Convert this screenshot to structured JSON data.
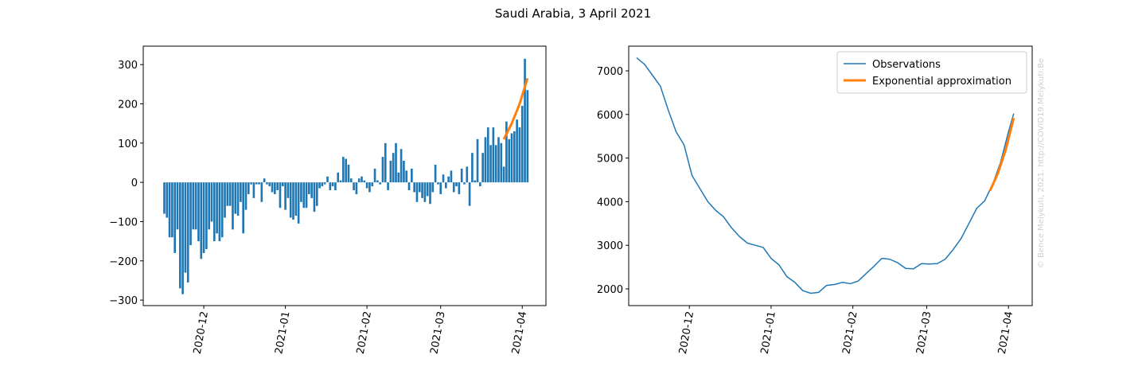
{
  "title": "Saudi Arabia, 3 April 2021",
  "watermark": "© Bence Melykuti, 2021. http://COVID19.Melykuti.Be",
  "chart_data": [
    {
      "type": "bar",
      "xlim": [
        "2020-11-08",
        "2021-04-10"
      ],
      "xticks": [
        "2020-12",
        "2021-01",
        "2021-02",
        "2021-03",
        "2021-04"
      ],
      "ylim": [
        -314,
        347
      ],
      "yticks": [
        {
          "value": -300,
          "label": "−300"
        },
        {
          "value": -200,
          "label": "−200"
        },
        {
          "value": -100,
          "label": "−100"
        },
        0,
        100,
        200,
        300
      ],
      "series": [
        {
          "type": "bar",
          "color": "#1f77b4",
          "start": "2020-11-16",
          "values": [
            -80,
            -90,
            -140,
            -140,
            -180,
            -120,
            -270,
            -285,
            -230,
            -255,
            -160,
            -120,
            -120,
            -150,
            -195,
            -180,
            -170,
            -120,
            -100,
            -150,
            -130,
            -150,
            -140,
            -90,
            -60,
            -60,
            -120,
            -80,
            -85,
            -50,
            -130,
            -70,
            -30,
            -5,
            -40,
            -5,
            -5,
            -50,
            10,
            -5,
            -10,
            -25,
            -30,
            -20,
            -65,
            -10,
            -70,
            -40,
            -90,
            -95,
            -85,
            -105,
            -50,
            -65,
            -65,
            -30,
            -40,
            -75,
            -60,
            -15,
            -10,
            -5,
            15,
            -20,
            -10,
            -20,
            25,
            5,
            65,
            60,
            45,
            10,
            -20,
            -30,
            10,
            15,
            5,
            -15,
            -25,
            -10,
            35,
            5,
            -5,
            65,
            100,
            -20,
            55,
            75,
            100,
            25,
            85,
            55,
            30,
            -20,
            35,
            -25,
            -50,
            -25,
            -40,
            -50,
            -35,
            -55,
            -25,
            45,
            -5,
            -30,
            20,
            -15,
            15,
            30,
            -25,
            -10,
            -30,
            35,
            -5,
            40,
            -60,
            75,
            5,
            110,
            -10,
            75,
            115,
            140,
            95,
            140,
            95,
            115,
            100,
            40,
            155,
            110,
            125,
            130,
            160,
            140,
            195,
            315,
            235
          ]
        },
        {
          "type": "line",
          "color": "#ff7f0e",
          "width": 3,
          "x": [
            "2021-03-25",
            "2021-03-28",
            "2021-03-31",
            "2021-04-03"
          ],
          "values": [
            110,
            150,
            200,
            265
          ]
        }
      ]
    },
    {
      "type": "line",
      "xlim": [
        "2020-11-08",
        "2021-04-10"
      ],
      "xticks": [
        "2020-12",
        "2021-01",
        "2021-02",
        "2021-03",
        "2021-04"
      ],
      "ylim": [
        1617,
        7566
      ],
      "yticks": [
        2000,
        3000,
        4000,
        5000,
        6000,
        7000
      ],
      "legend": "upper right",
      "series": [
        {
          "name": "Observations",
          "type": "line",
          "color": "#1f77b4",
          "width": 1.5,
          "x": [
            "2020-11-11",
            "2020-11-14",
            "2020-11-17",
            "2020-11-20",
            "2020-11-23",
            "2020-11-26",
            "2020-11-29",
            "2020-12-02",
            "2020-12-05",
            "2020-12-08",
            "2020-12-11",
            "2020-12-14",
            "2020-12-17",
            "2020-12-20",
            "2020-12-23",
            "2020-12-26",
            "2020-12-29",
            "2021-01-01",
            "2021-01-04",
            "2021-01-07",
            "2021-01-10",
            "2021-01-13",
            "2021-01-16",
            "2021-01-19",
            "2021-01-22",
            "2021-01-25",
            "2021-01-28",
            "2021-01-31",
            "2021-02-03",
            "2021-02-06",
            "2021-02-09",
            "2021-02-12",
            "2021-02-15",
            "2021-02-18",
            "2021-02-21",
            "2021-02-24",
            "2021-02-27",
            "2021-03-02",
            "2021-03-05",
            "2021-03-08",
            "2021-03-11",
            "2021-03-14",
            "2021-03-17",
            "2021-03-20",
            "2021-03-23",
            "2021-03-26",
            "2021-03-29",
            "2021-04-01",
            "2021-04-03"
          ],
          "values": [
            7300,
            7150,
            6900,
            6650,
            6100,
            5600,
            5300,
            4600,
            4300,
            4000,
            3800,
            3650,
            3400,
            3200,
            3050,
            3000,
            2950,
            2700,
            2550,
            2280,
            2150,
            1960,
            1900,
            1920,
            2080,
            2100,
            2150,
            2120,
            2180,
            2350,
            2520,
            2700,
            2680,
            2600,
            2470,
            2460,
            2580,
            2570,
            2580,
            2680,
            2900,
            3150,
            3500,
            3850,
            4020,
            4400,
            4900,
            5600,
            6020
          ]
        },
        {
          "name": "Exponential approximation",
          "type": "line",
          "color": "#ff7f0e",
          "width": 3,
          "x": [
            "2021-03-25",
            "2021-03-28",
            "2021-03-31",
            "2021-04-03"
          ],
          "values": [
            4250,
            4650,
            5200,
            5920
          ]
        }
      ]
    }
  ]
}
